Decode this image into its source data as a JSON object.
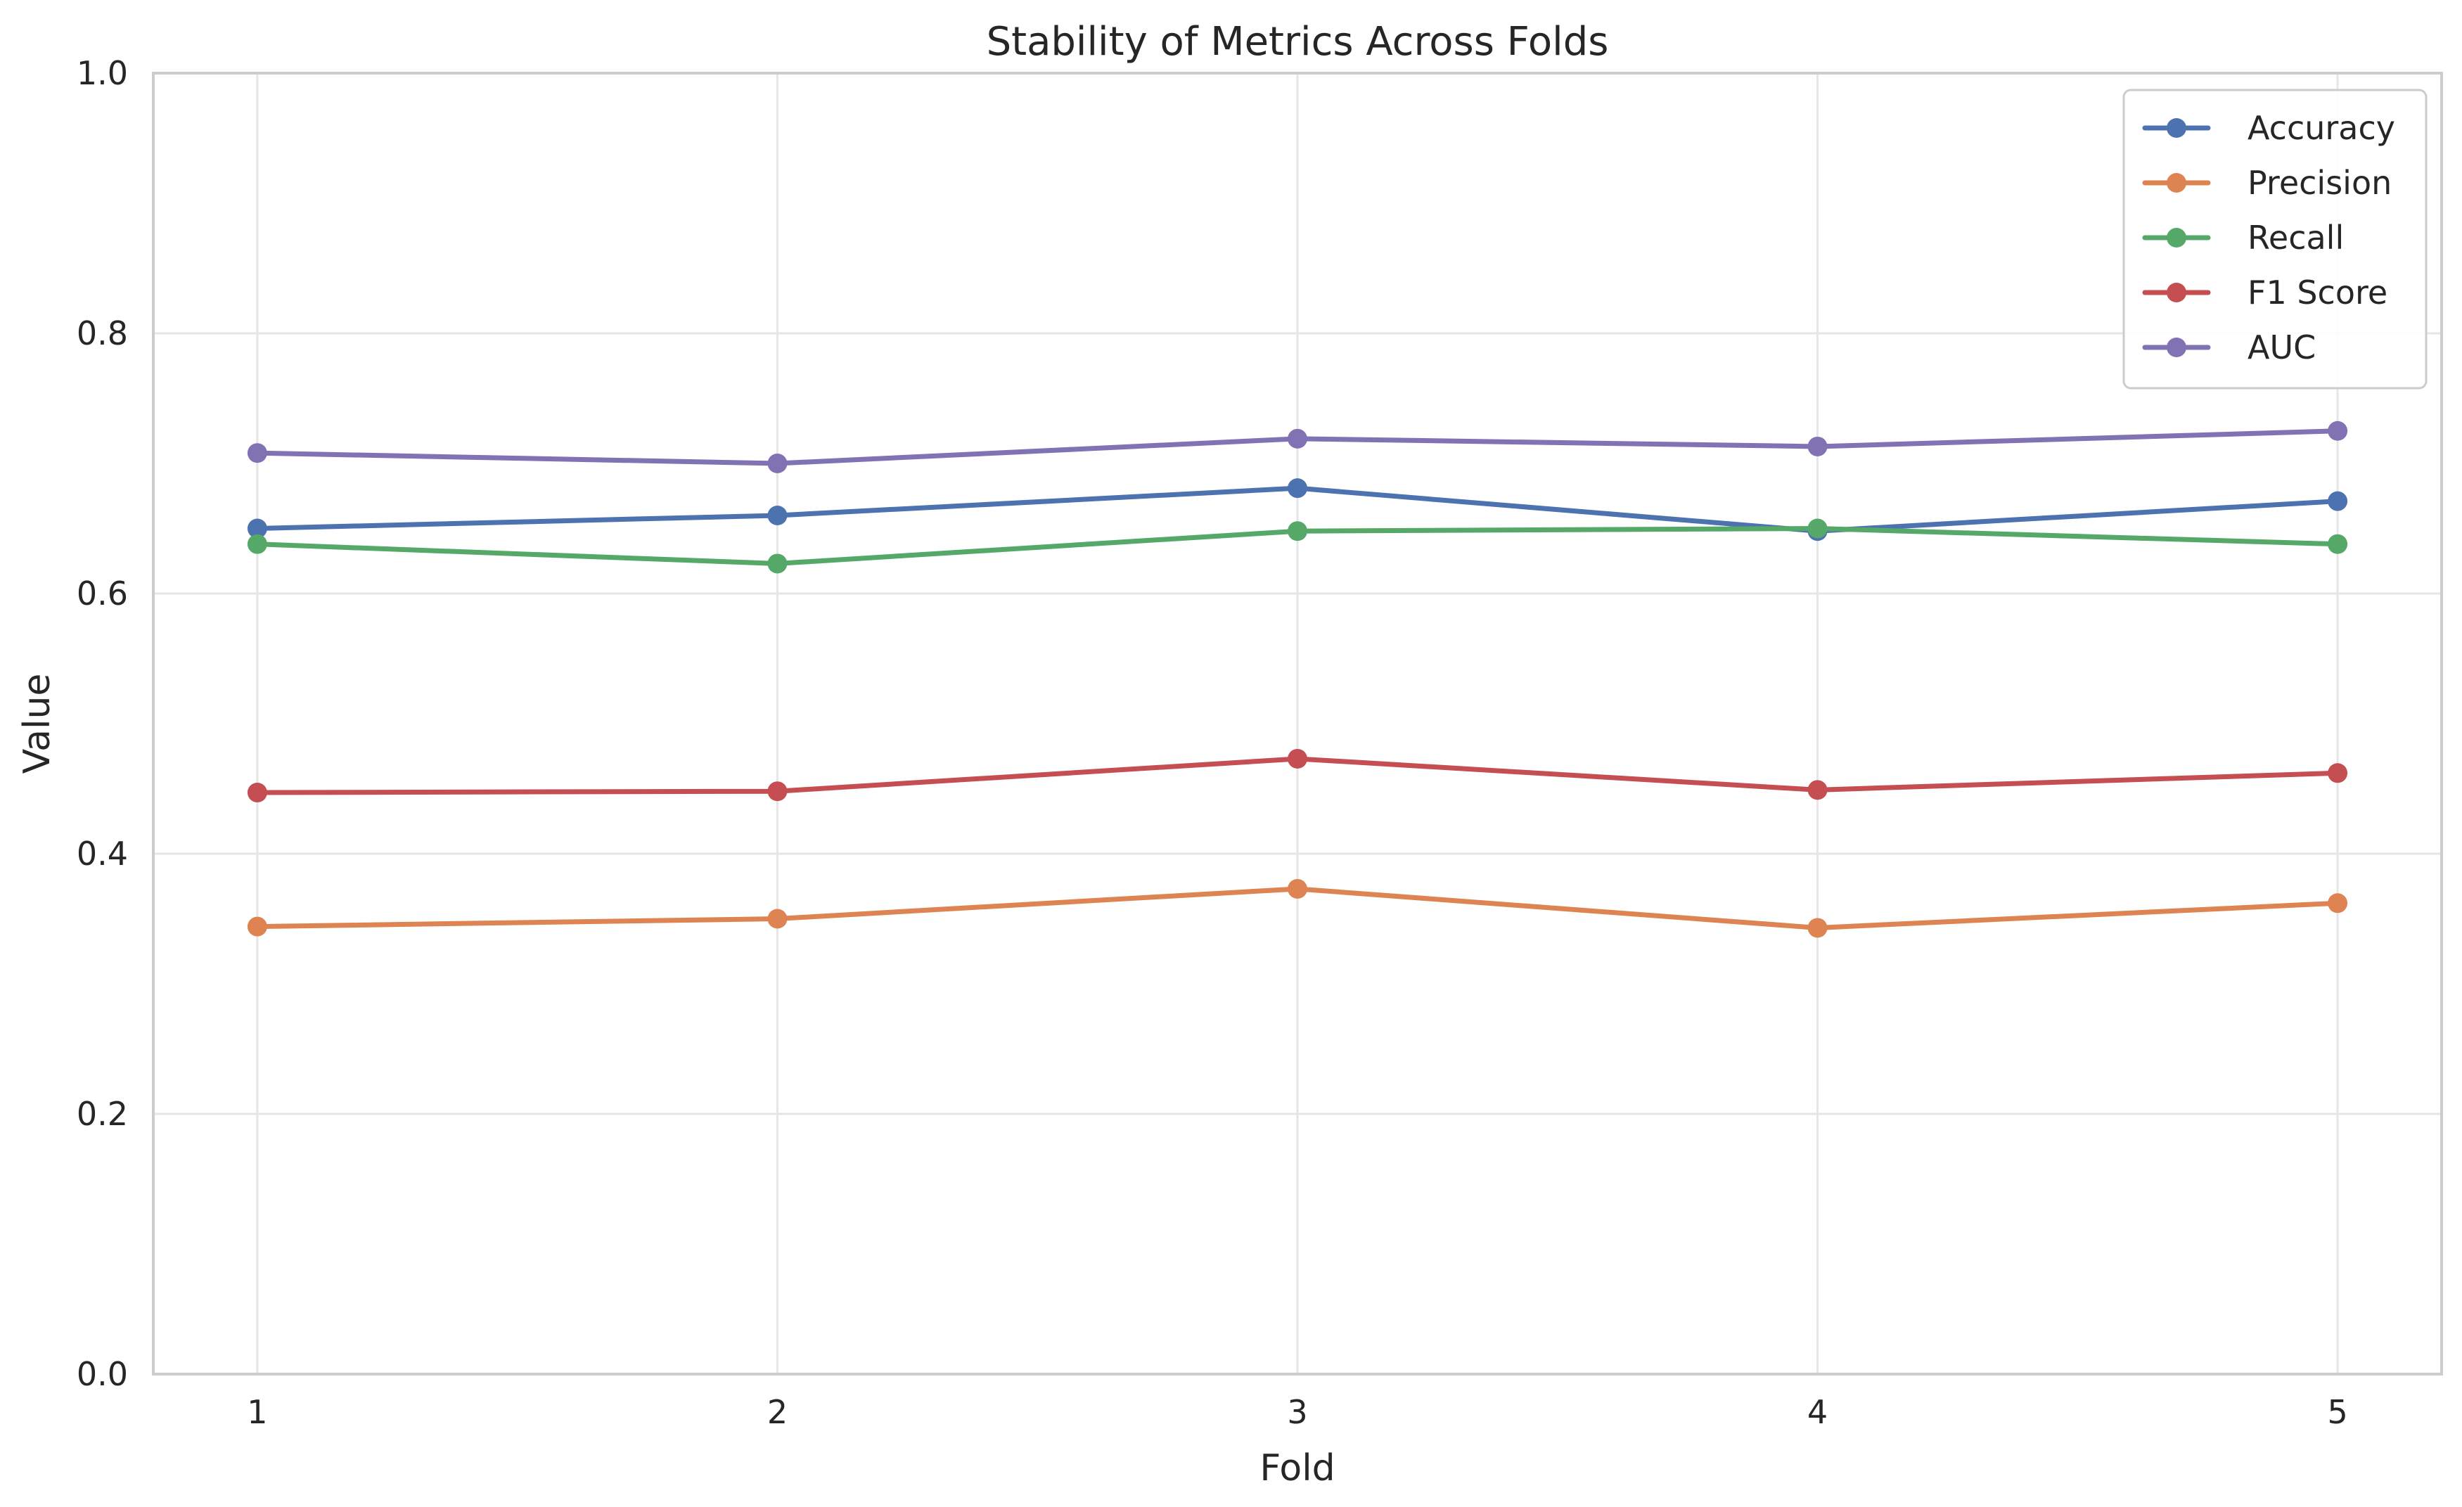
{
  "chart_data": {
    "type": "line",
    "title": "Stability of Metrics Across Folds",
    "xlabel": "Fold",
    "ylabel": "Value",
    "categories": [
      "1",
      "2",
      "3",
      "4",
      "5"
    ],
    "x": [
      1,
      2,
      3,
      4,
      5
    ],
    "xlim": [
      0.8,
      5.2
    ],
    "ylim": [
      0.0,
      1.0
    ],
    "yticks": [
      "0.0",
      "0.2",
      "0.4",
      "0.6",
      "0.8",
      "1.0"
    ],
    "ytick_values": [
      0.0,
      0.2,
      0.4,
      0.6,
      0.8,
      1.0
    ],
    "grid": true,
    "legend_position": "top-right",
    "markers": true,
    "series": [
      {
        "name": "Accuracy",
        "color": "#4c72b0",
        "values": [
          0.65,
          0.66,
          0.681,
          0.648,
          0.671
        ]
      },
      {
        "name": "Precision",
        "color": "#dd8452",
        "values": [
          0.344,
          0.35,
          0.373,
          0.343,
          0.362
        ]
      },
      {
        "name": "Recall",
        "color": "#55a868",
        "values": [
          0.638,
          0.623,
          0.648,
          0.65,
          0.638
        ]
      },
      {
        "name": "F1 Score",
        "color": "#c44e52",
        "values": [
          0.447,
          0.448,
          0.473,
          0.449,
          0.462
        ]
      },
      {
        "name": "AUC",
        "color": "#8172b3",
        "values": [
          0.708,
          0.7,
          0.719,
          0.713,
          0.725
        ]
      }
    ]
  }
}
